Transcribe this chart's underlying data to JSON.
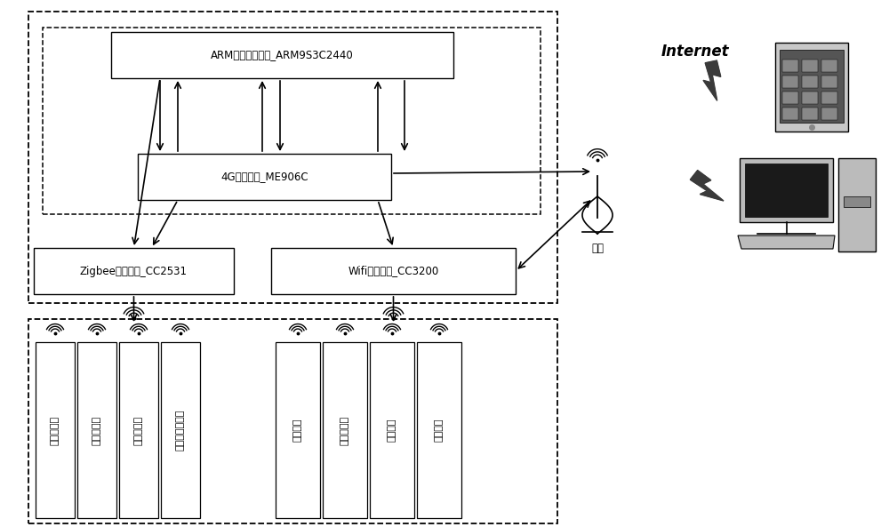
{
  "bg_color": "#ffffff",
  "text_color": "#1a1a1a",
  "arm_label": "ARM嵌入式处理器_ARM9S3C2440",
  "module4g_label": "4G无线通讯_ME906C",
  "zigbee_label": "Zigbee无线通讯_CC2531",
  "wifi_label": "Wifi无线通讯_CC3200",
  "internet_label": "Internet",
  "antenna_label": "天线",
  "sensors": [
    "温度传感器",
    "湿度传感器",
    "光照传感器",
    "二氧化碳传感器"
  ],
  "actuators": [
    "微灸喷头",
    "雾化加湿器",
    "散热风扇",
    "升降幕布"
  ],
  "figw": 10.0,
  "figh": 5.93,
  "dpi": 100
}
